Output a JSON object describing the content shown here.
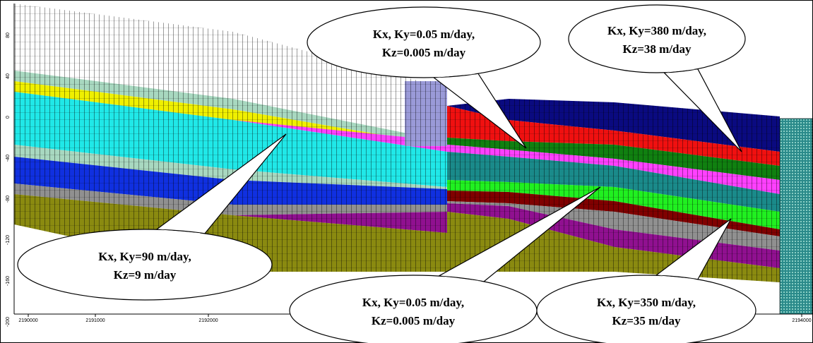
{
  "axes": {
    "x_ticks": [
      "2190000",
      "2191000",
      "2192000",
      "2194000"
    ],
    "y_ticks": [
      "80",
      "40",
      "0",
      "-40",
      "-80",
      "-120",
      "-160",
      "-200"
    ]
  },
  "callouts": [
    {
      "line1": "Kx, Ky=0.05 m/day,",
      "line2": "Kz=0.005 m/day"
    },
    {
      "line1": "Kx, Ky=380 m/day,",
      "line2": "Kz=38 m/day"
    },
    {
      "line1": "Kx, Ky=90 m/day,",
      "line2": "Kz=9 m/day"
    },
    {
      "line1": "Kx, Ky=0.05 m/day,",
      "line2": "Kz=0.005 m/day"
    },
    {
      "line1": "Kx, Ky=350 m/day,",
      "line2": "Kz=35 m/day"
    }
  ]
}
